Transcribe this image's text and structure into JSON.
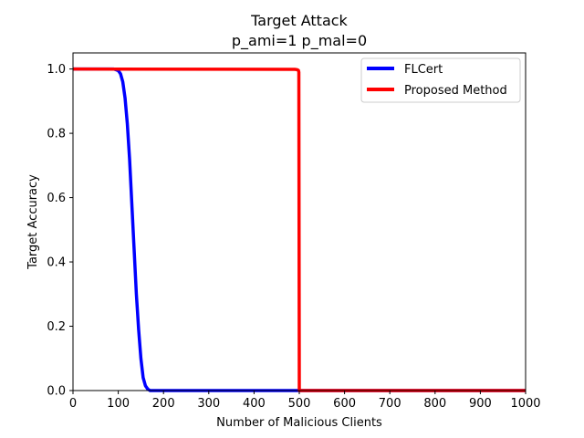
{
  "chart_data": {
    "type": "line",
    "title": "Target Attack",
    "subtitle": "p_ami=1   p_mal=0",
    "xlabel": "Number of Malicious Clients",
    "ylabel": "Target Accuracy",
    "xlim": [
      0,
      1000
    ],
    "ylim": [
      0,
      1.05
    ],
    "xticks": [
      0,
      100,
      200,
      300,
      400,
      500,
      600,
      700,
      800,
      900,
      1000
    ],
    "yticks": [
      0.0,
      0.2,
      0.4,
      0.6,
      0.8,
      1.0
    ],
    "xtick_labels": [
      "0",
      "100",
      "200",
      "300",
      "400",
      "500",
      "600",
      "700",
      "800",
      "900",
      "1000"
    ],
    "ytick_labels": [
      "0.0",
      "0.2",
      "0.4",
      "0.6",
      "0.8",
      "1.0"
    ],
    "grid": false,
    "legend_position": "top-right",
    "series": [
      {
        "name": "FLCert",
        "color": "#0000ff",
        "x": [
          0,
          90,
          100,
          105,
          110,
          115,
          120,
          125,
          130,
          135,
          140,
          145,
          150,
          155,
          160,
          165,
          170,
          180,
          200,
          300,
          400,
          500,
          600,
          700,
          800,
          900,
          1000
        ],
        "y": [
          1.0,
          1.0,
          0.995,
          0.985,
          0.96,
          0.91,
          0.83,
          0.72,
          0.58,
          0.44,
          0.3,
          0.19,
          0.1,
          0.04,
          0.015,
          0.005,
          0.0,
          0.0,
          0.0,
          0.0,
          0.0,
          0.0,
          0.0,
          0.0,
          0.0,
          0.0,
          0.0
        ]
      },
      {
        "name": "Proposed Method",
        "color": "#ff0000",
        "x": [
          0,
          490,
          495,
          498,
          499,
          499.5,
          500,
          600,
          700,
          800,
          900,
          1000
        ],
        "y": [
          1.0,
          0.999,
          0.998,
          0.996,
          0.99,
          0.5,
          0.0,
          0.0,
          0.0,
          0.0,
          0.0,
          0.0
        ]
      }
    ]
  }
}
